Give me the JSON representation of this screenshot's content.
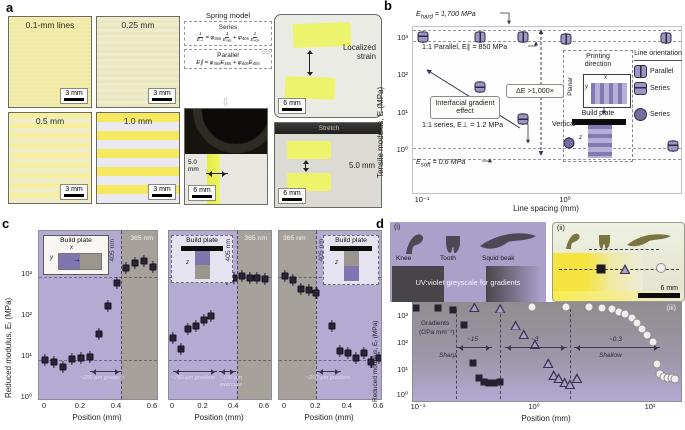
{
  "colors": {
    "violet_bg": "#b4abd3",
    "grey_bg": "#a6a29b",
    "marker_purple": "#9e95c5",
    "marker_outline": "#2f2a42",
    "dark_marker": "#26212f",
    "yellow_stripe": "#f6e95f",
    "pale_yellow": "#f2ecae",
    "photo_lavender": "#eae9f0"
  },
  "panel_a": {
    "label": "a",
    "photos": [
      {
        "label": "0.1-mm lines",
        "scale": "3 mm"
      },
      {
        "label": "0.25 mm",
        "scale": "3 mm"
      },
      {
        "label": "0.5 mm",
        "scale": "3 mm"
      },
      {
        "label": "1.0 mm",
        "scale": "3 mm"
      }
    ],
    "spring_model": {
      "title": "Spring model",
      "series_label": "Series",
      "series_lhs_num": "1",
      "series_lhs_den": "E⊥",
      "series_mid": "= φ₃₆₅",
      "series_f1_num": "1",
      "series_f1_den": "E₃₆₅",
      "series_plus": "+ φ₄₀₅",
      "series_f2_num": "1",
      "series_f2_den": "E₄₀₅",
      "parallel_label": "Parallel",
      "parallel_eq": "E∥ = φ₃₆₅E₃₆₅ + φ₄₀₅E₄₀₅"
    },
    "printer_photo": {
      "gap": "5.0 mm",
      "scale": "6 mm"
    },
    "strain_photo": {
      "caption": "Localized strain",
      "scale": "6 mm"
    },
    "stretch_photo": {
      "header": "Stretch",
      "gap": "5.0 mm",
      "scale": "6 mm"
    }
  },
  "panel_b": {
    "label": "b",
    "ylabel": "Tensile modulus, E (MPa)",
    "xlabel": "Line spacing (mm)",
    "y_ticks": [
      "10³",
      "10²",
      "10¹",
      "10⁰"
    ],
    "x_ticks": [
      "10⁻¹",
      "10⁰"
    ],
    "ann_ehard_base": "E",
    "ann_ehard_sub": "hard",
    "ann_ehard_rest": " = 1,700 MPa",
    "ann_parallel": "1:1 Parallel, E∥ = 850 MPa",
    "ann_interfacial": "Interfacial gradient effect",
    "ann_delta": "ΔE >1,000×",
    "ann_series": "1:1 series, E⊥ = 1.2 MPa",
    "ann_esoft_base": "E",
    "ann_esoft_sub": "soft",
    "ann_esoft_rest": " = 0.6 MPa",
    "legend": {
      "printing_title": "Printing direction",
      "planar": "Planar",
      "build_plate": "Build plate",
      "vertical": "Vertical",
      "x": "x",
      "y": "y",
      "z": "z",
      "orientation_title": "Line orientation",
      "item_parallel": "Parallel",
      "item_series_sq": "Series",
      "item_series_circ": "Series"
    }
  },
  "panel_c": {
    "label": "c",
    "ylabel": "Reduced modulus, Eᵣ (MPa)",
    "xlabel": "Position (mm)",
    "y_ticks": [
      "10³",
      "10²",
      "10¹",
      "10⁰"
    ],
    "x_ticks": [
      "0",
      "0.2",
      "0.4",
      "0.6"
    ],
    "build_plate": "Build plate",
    "nm405": "405 nm",
    "nm365": "365 nm",
    "x": "x",
    "y": "y",
    "z": "z",
    "grad200": "~200-µm gradient",
    "grad750": "~750-µm gradient",
    "overcure100": "~100-µm overcure"
  },
  "panel_d": {
    "label": "d",
    "i": "(i)",
    "ii": "(ii)",
    "iii": "(iii)",
    "knee": "Knee",
    "tooth": "Tooth",
    "squid": "Squid beak",
    "uv_text": "UV:violet greyscale for gradients",
    "scale": "6 mm",
    "ylabel": "Reduced modulus, Eᵣ (MPa)",
    "xlabel": "Position (mm)",
    "y_ticks": [
      "10³",
      "10²",
      "10¹",
      "10⁰"
    ],
    "x_ticks": [
      "10⁻¹",
      "10⁰",
      "10¹"
    ],
    "gradients_title": "Gradients",
    "gradients_units": "(GPa mm⁻¹)",
    "g15": "~15",
    "g3": "~3",
    "g03": "~0.3",
    "sharp": "Sharp",
    "shallow": "Shallow"
  },
  "chart_data": [
    {
      "id": "panel-b",
      "type": "scatter",
      "title": "Tensile modulus vs line spacing",
      "xlabel": "Line spacing (mm)",
      "ylabel": "Tensile modulus, E (MPa)",
      "x_scale": "log",
      "y_scale": "log",
      "xlim": [
        0.085,
        6.5
      ],
      "ylim": [
        0.45,
        2600
      ],
      "reference_lines_mpa": [
        1700,
        850,
        1.2,
        0.6
      ],
      "reference_labels": [
        "E_hard = 1,700 MPa",
        "1:1 Parallel = 850 MPa",
        "1:1 series = 1.2 MPa",
        "E_soft = 0.6 MPa"
      ],
      "delta_annotation": "ΔE >1,000×",
      "series": [
        {
          "name": "Parallel, planar printing",
          "marker": "square-vline",
          "points": [
            [
              0.25,
              1100
            ],
            [
              0.5,
              1050
            ],
            [
              1.0,
              950
            ],
            [
              5.0,
              1000
            ]
          ]
        },
        {
          "name": "Series, planar printing",
          "marker": "square-hline",
          "points": [
            [
              0.1,
              1100
            ],
            [
              0.25,
              50
            ],
            [
              0.5,
              7
            ],
            [
              5.6,
              1.4
            ]
          ]
        },
        {
          "name": "Series, vertical printing",
          "marker": "circle",
          "points": [
            [
              1.05,
              1.6
            ]
          ]
        }
      ]
    },
    {
      "id": "panel-c1",
      "type": "scatter",
      "interface_mm": 0.42,
      "flip": false,
      "xlabel": "Position (mm)",
      "ylabel": "Reduced modulus, Er (MPa)",
      "reference_lines_mpa": [
        850,
        8
      ],
      "points": [
        [
          0,
          8
        ],
        [
          0.05,
          7
        ],
        [
          0.1,
          5.5
        ],
        [
          0.15,
          8.5
        ],
        [
          0.2,
          9
        ],
        [
          0.25,
          9.5
        ],
        [
          0.3,
          35
        ],
        [
          0.35,
          170
        ],
        [
          0.4,
          600
        ],
        [
          0.45,
          1400
        ],
        [
          0.5,
          1900
        ],
        [
          0.55,
          2100
        ],
        [
          0.6,
          1500
        ]
      ]
    },
    {
      "id": "panel-c2",
      "type": "scatter",
      "interface_mm": 0.42,
      "flip": false,
      "xlabel": "Position (mm)",
      "ylabel": "Reduced modulus, Er (MPa)",
      "reference_lines_mpa": [
        850,
        8
      ],
      "points": [
        [
          0,
          28
        ],
        [
          0.05,
          15
        ],
        [
          0.1,
          45
        ],
        [
          0.15,
          55
        ],
        [
          0.2,
          75
        ],
        [
          0.25,
          95
        ],
        [
          0.3,
          900
        ],
        [
          0.35,
          750
        ],
        [
          0.4,
          820
        ],
        [
          0.45,
          880
        ],
        [
          0.5,
          800
        ],
        [
          0.55,
          780
        ],
        [
          0.6,
          760
        ]
      ]
    },
    {
      "id": "panel-c3",
      "type": "scatter",
      "interface_mm": 0.2,
      "flip": true,
      "xlabel": "Position (mm)",
      "ylabel": "Reduced modulus, Er (MPa)",
      "reference_lines_mpa": [
        850,
        8
      ],
      "points": [
        [
          0,
          900
        ],
        [
          0.05,
          700
        ],
        [
          0.1,
          420
        ],
        [
          0.15,
          400
        ],
        [
          0.2,
          350
        ],
        [
          0.3,
          55
        ],
        [
          0.35,
          13
        ],
        [
          0.4,
          12
        ],
        [
          0.45,
          9
        ],
        [
          0.5,
          12
        ],
        [
          0.55,
          7
        ],
        [
          0.6,
          9
        ]
      ]
    },
    {
      "id": "panel-d",
      "type": "scatter",
      "xlabel": "Position (mm)",
      "ylabel": "Reduced modulus, Er (MPa)",
      "x_scale": "log",
      "y_scale": "log",
      "dashed_x_mm": [
        0.21,
        0.5,
        2.0
      ],
      "series": [
        {
          "name": "Sharp gradient ~15 GPa/mm",
          "marker": "black-square",
          "points": [
            [
              0.095,
              1900
            ],
            [
              0.145,
              2000
            ],
            [
              0.195,
              1600
            ],
            [
              0.245,
              450
            ],
            [
              0.29,
              18
            ],
            [
              0.33,
              5
            ],
            [
              0.36,
              3.5
            ],
            [
              0.4,
              3.2
            ],
            [
              0.44,
              3.2
            ],
            [
              0.5,
              3.5
            ]
          ]
        },
        {
          "name": "Gradient ~3 GPa/mm",
          "marker": "triangle",
          "points": [
            [
              0.3,
              2100
            ],
            [
              0.5,
              1900
            ],
            [
              0.68,
              450
            ],
            [
              0.8,
              210
            ],
            [
              1.0,
              90
            ],
            [
              1.3,
              18
            ],
            [
              1.45,
              6.5
            ],
            [
              1.6,
              5
            ],
            [
              1.8,
              3.5
            ],
            [
              2.0,
              3
            ],
            [
              2.3,
              5
            ]
          ]
        },
        {
          "name": "Shallow gradient ~0.3 GPa/mm",
          "marker": "circle",
          "points": [
            [
              0.95,
              2500
            ],
            [
              1.85,
              2500
            ],
            [
              2.9,
              2300
            ],
            [
              3.8,
              2050
            ],
            [
              4.6,
              1750
            ],
            [
              5.3,
              1450
            ],
            [
              6.0,
              1150
            ],
            [
              6.8,
              850
            ],
            [
              7.6,
              550
            ],
            [
              8.4,
              330
            ],
            [
              9.3,
              190
            ],
            [
              10.5,
              110
            ],
            [
              11.2,
              16
            ],
            [
              12,
              7
            ],
            [
              13,
              5.5
            ],
            [
              14,
              5
            ],
            [
              15.2,
              5
            ],
            [
              16.2,
              4.5
            ]
          ]
        }
      ]
    }
  ]
}
